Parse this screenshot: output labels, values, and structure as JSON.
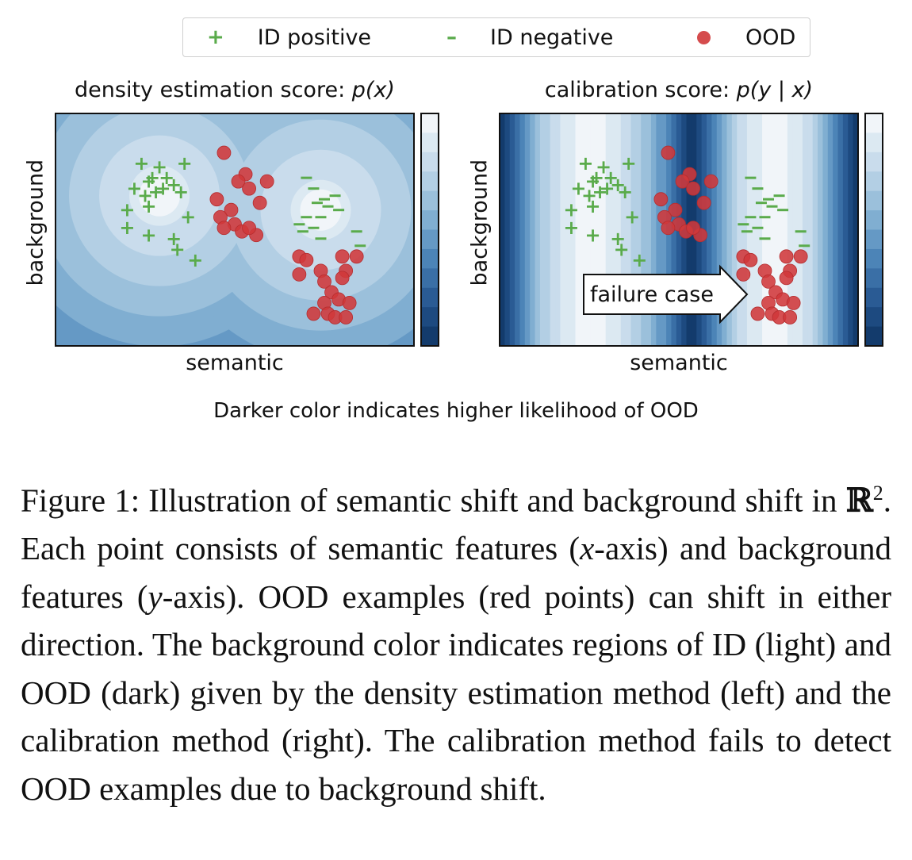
{
  "legend": {
    "items": [
      {
        "marker": "+",
        "label": "ID positive",
        "color": "#5aab4b"
      },
      {
        "marker": "–",
        "label": "ID negative",
        "color": "#5aab4b"
      },
      {
        "marker": "dot",
        "label": "OOD",
        "color": "#d0383a"
      }
    ]
  },
  "panels": [
    {
      "title_prefix": "density estimation score: ",
      "title_math": "p(x)",
      "xlabel": "semantic",
      "ylabel": "background"
    },
    {
      "title_prefix": "calibration score: ",
      "title_math": "p(y | x)",
      "xlabel": "semantic",
      "ylabel": "background",
      "annotation": "failure case"
    }
  ],
  "note": "Darker color indicates higher likelihood of OOD",
  "caption": {
    "prefix": "Figure 1: Illustration of semantic shift and background shift in ",
    "math_set": "ℝ",
    "superscript": "2",
    "part2": ".  Each point consists of semantic features (",
    "x_var": "x",
    "part3": "-axis) and background features (",
    "y_var": "y",
    "part4": "-axis). OOD examples (red points) can shift in either direction. The background color indicates regions of ID (light) and OOD (dark) given by the density estimation method (left) and the calibration method (right). The calibration method fails to detect OOD examples due to background shift."
  },
  "colors": {
    "positive": "#5aab4b",
    "ood": "#d0383a",
    "colormap": [
      "#f1f5f9",
      "#dce9f2",
      "#c9dcec",
      "#b3cfe4",
      "#9bc0db",
      "#80aed1",
      "#6599c5",
      "#4c84b7",
      "#3a6fa6",
      "#2a5b94",
      "#1d4a80",
      "#133b6c"
    ]
  },
  "chart_data": [
    {
      "type": "scatter",
      "title": "density estimation score: p(x)",
      "xlabel": "semantic",
      "ylabel": "background",
      "xlim": [
        0,
        10
      ],
      "ylim": [
        0,
        6.5
      ],
      "series": [
        {
          "name": "ID positive",
          "marker": "+",
          "points": [
            [
              2.4,
              5.1
            ],
            [
              2.6,
              4.6
            ],
            [
              2.9,
              5.0
            ],
            [
              2.7,
              4.7
            ],
            [
              3.1,
              4.7
            ],
            [
              3.3,
              4.5
            ],
            [
              2.2,
              4.4
            ],
            [
              2.5,
              4.2
            ],
            [
              2.8,
              4.3
            ],
            [
              3.0,
              4.4
            ],
            [
              2.0,
              3.8
            ],
            [
              2.6,
              3.9
            ],
            [
              3.5,
              4.3
            ],
            [
              3.7,
              3.6
            ],
            [
              2.0,
              3.3
            ],
            [
              2.6,
              3.1
            ],
            [
              3.3,
              3.0
            ],
            [
              3.4,
              2.7
            ],
            [
              3.9,
              2.4
            ],
            [
              3.6,
              5.1
            ]
          ]
        },
        {
          "name": "ID negative",
          "marker": "–",
          "points": [
            [
              7.0,
              4.7
            ],
            [
              7.2,
              4.4
            ],
            [
              7.5,
              4.1
            ],
            [
              7.8,
              4.2
            ],
            [
              7.3,
              4.0
            ],
            [
              7.6,
              3.9
            ],
            [
              7.0,
              3.6
            ],
            [
              7.4,
              3.6
            ],
            [
              7.9,
              3.8
            ],
            [
              6.8,
              3.4
            ],
            [
              7.2,
              3.3
            ],
            [
              7.4,
              3.0
            ],
            [
              6.9,
              3.2
            ],
            [
              8.4,
              3.2
            ],
            [
              8.5,
              2.8
            ]
          ]
        },
        {
          "name": "OOD",
          "marker": "o",
          "points": [
            [
              4.7,
              5.4
            ],
            [
              5.3,
              4.8
            ],
            [
              5.1,
              4.6
            ],
            [
              5.9,
              4.6
            ],
            [
              4.5,
              4.1
            ],
            [
              5.4,
              4.4
            ],
            [
              5.7,
              4.0
            ],
            [
              4.9,
              3.8
            ],
            [
              4.6,
              3.6
            ],
            [
              5.0,
              3.4
            ],
            [
              5.2,
              3.2
            ],
            [
              5.6,
              3.1
            ],
            [
              5.4,
              3.3
            ],
            [
              4.7,
              3.3
            ],
            [
              6.8,
              2.5
            ],
            [
              7.0,
              2.4
            ],
            [
              7.4,
              2.1
            ],
            [
              8.0,
              2.5
            ],
            [
              8.4,
              2.5
            ],
            [
              8.1,
              2.1
            ],
            [
              6.8,
              2.0
            ],
            [
              7.5,
              1.8
            ],
            [
              8.0,
              1.9
            ],
            [
              7.7,
              1.5
            ],
            [
              7.5,
              1.2
            ],
            [
              7.9,
              1.3
            ],
            [
              8.2,
              1.2
            ],
            [
              7.6,
              0.9
            ],
            [
              7.2,
              0.9
            ],
            [
              7.8,
              0.8
            ],
            [
              8.1,
              0.8
            ]
          ]
        }
      ],
      "background": "concentric density contours centered on ID clusters"
    },
    {
      "type": "scatter",
      "title": "calibration score: p(y | x)",
      "xlabel": "semantic",
      "ylabel": "background",
      "xlim": [
        0,
        10
      ],
      "ylim": [
        0,
        6.5
      ],
      "series": [
        {
          "name": "ID positive",
          "marker": "+",
          "points": [
            [
              2.4,
              5.1
            ],
            [
              2.6,
              4.6
            ],
            [
              2.9,
              5.0
            ],
            [
              2.7,
              4.7
            ],
            [
              3.1,
              4.7
            ],
            [
              3.3,
              4.5
            ],
            [
              2.2,
              4.4
            ],
            [
              2.5,
              4.2
            ],
            [
              2.8,
              4.3
            ],
            [
              3.0,
              4.4
            ],
            [
              2.0,
              3.8
            ],
            [
              2.6,
              3.9
            ],
            [
              3.5,
              4.3
            ],
            [
              3.7,
              3.6
            ],
            [
              2.0,
              3.3
            ],
            [
              2.6,
              3.1
            ],
            [
              3.3,
              3.0
            ],
            [
              3.4,
              2.7
            ],
            [
              3.9,
              2.4
            ],
            [
              3.6,
              5.1
            ]
          ]
        },
        {
          "name": "ID negative",
          "marker": "–",
          "points": [
            [
              7.0,
              4.7
            ],
            [
              7.2,
              4.4
            ],
            [
              7.5,
              4.1
            ],
            [
              7.8,
              4.2
            ],
            [
              7.3,
              4.0
            ],
            [
              7.6,
              3.9
            ],
            [
              7.0,
              3.6
            ],
            [
              7.4,
              3.6
            ],
            [
              7.9,
              3.8
            ],
            [
              6.8,
              3.4
            ],
            [
              7.2,
              3.3
            ],
            [
              7.4,
              3.0
            ],
            [
              6.9,
              3.2
            ],
            [
              8.4,
              3.2
            ],
            [
              8.5,
              2.8
            ]
          ]
        },
        {
          "name": "OOD",
          "marker": "o",
          "points": [
            [
              4.7,
              5.4
            ],
            [
              5.3,
              4.8
            ],
            [
              5.1,
              4.6
            ],
            [
              5.9,
              4.6
            ],
            [
              4.5,
              4.1
            ],
            [
              5.4,
              4.4
            ],
            [
              5.7,
              4.0
            ],
            [
              4.9,
              3.8
            ],
            [
              4.6,
              3.6
            ],
            [
              5.0,
              3.4
            ],
            [
              5.2,
              3.2
            ],
            [
              5.6,
              3.1
            ],
            [
              5.4,
              3.3
            ],
            [
              4.7,
              3.3
            ],
            [
              6.8,
              2.5
            ],
            [
              7.0,
              2.4
            ],
            [
              7.4,
              2.1
            ],
            [
              8.0,
              2.5
            ],
            [
              8.4,
              2.5
            ],
            [
              8.1,
              2.1
            ],
            [
              6.8,
              2.0
            ],
            [
              7.5,
              1.8
            ],
            [
              8.0,
              1.9
            ],
            [
              7.7,
              1.5
            ],
            [
              7.5,
              1.2
            ],
            [
              7.9,
              1.3
            ],
            [
              8.2,
              1.2
            ],
            [
              7.6,
              0.9
            ],
            [
              7.2,
              0.9
            ],
            [
              7.8,
              0.8
            ],
            [
              8.1,
              0.8
            ]
          ]
        }
      ],
      "background": "vertical bands depending only on semantic axis",
      "annotation": "failure case"
    }
  ]
}
